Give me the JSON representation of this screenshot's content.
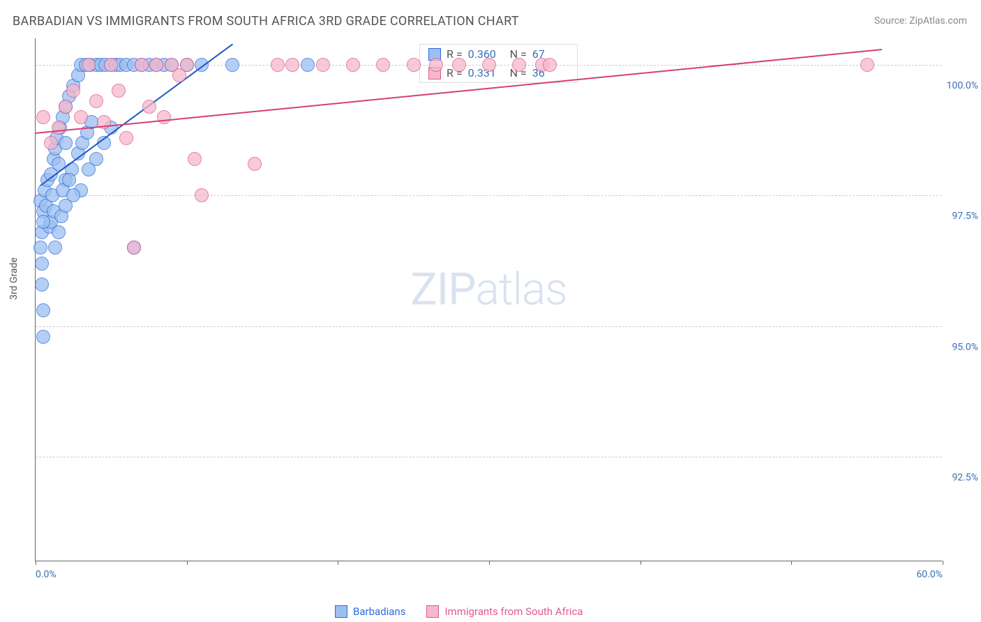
{
  "title": "BARBADIAN VS IMMIGRANTS FROM SOUTH AFRICA 3RD GRADE CORRELATION CHART",
  "source": "Source: ZipAtlas.com",
  "y_axis_title": "3rd Grade",
  "watermark_a": "ZIP",
  "watermark_b": "atlas",
  "chart": {
    "type": "scatter",
    "background_color": "#ffffff",
    "grid_color": "#cccccc",
    "axis_color": "#666666",
    "label_color": "#3b6fb6",
    "xlim": [
      0,
      60
    ],
    "ylim": [
      90.5,
      100.5
    ],
    "x_ticks": [
      0,
      10,
      20,
      30,
      40,
      50,
      60
    ],
    "x_tick_labels": {
      "0": "0.0%",
      "60": "60.0%"
    },
    "y_ticks": [
      92.5,
      95.0,
      97.5,
      100.0
    ],
    "y_tick_labels": [
      "92.5%",
      "95.0%",
      "97.5%",
      "100.0%"
    ],
    "marker_radius": 10,
    "marker_fill_opacity": 0.35,
    "marker_stroke_width": 1.5,
    "series": [
      {
        "name": "Barbadians",
        "color_stroke": "#2d6cdf",
        "color_fill": "#9bbff0",
        "R": "0.360",
        "N": "67",
        "trend": {
          "x1": 0.3,
          "y1": 97.7,
          "x2": 13.0,
          "y2": 100.4,
          "color": "#1e56c9",
          "width": 2
        },
        "points": [
          [
            0.3,
            97.4
          ],
          [
            0.5,
            97.2
          ],
          [
            0.4,
            96.8
          ],
          [
            0.3,
            96.5
          ],
          [
            0.6,
            97.6
          ],
          [
            0.8,
            97.8
          ],
          [
            1.0,
            97.9
          ],
          [
            1.2,
            98.2
          ],
          [
            1.3,
            98.4
          ],
          [
            1.5,
            98.1
          ],
          [
            1.4,
            98.6
          ],
          [
            1.6,
            98.8
          ],
          [
            1.8,
            99.0
          ],
          [
            0.9,
            96.9
          ],
          [
            0.7,
            97.3
          ],
          [
            1.1,
            97.5
          ],
          [
            2.0,
            99.2
          ],
          [
            2.2,
            99.4
          ],
          [
            2.5,
            99.6
          ],
          [
            2.8,
            99.8
          ],
          [
            3.0,
            100.0
          ],
          [
            3.3,
            100.0
          ],
          [
            3.6,
            100.0
          ],
          [
            4.0,
            100.0
          ],
          [
            4.3,
            100.0
          ],
          [
            4.6,
            100.0
          ],
          [
            5.0,
            100.0
          ],
          [
            5.3,
            100.0
          ],
          [
            5.6,
            100.0
          ],
          [
            6.0,
            100.0
          ],
          [
            6.5,
            100.0
          ],
          [
            7.0,
            100.0
          ],
          [
            7.5,
            100.0
          ],
          [
            8.0,
            100.0
          ],
          [
            8.5,
            100.0
          ],
          [
            9.0,
            100.0
          ],
          [
            10.0,
            100.0
          ],
          [
            11.0,
            100.0
          ],
          [
            13.0,
            100.0
          ],
          [
            18.0,
            100.0
          ],
          [
            1.0,
            97.0
          ],
          [
            1.2,
            97.2
          ],
          [
            0.5,
            97.0
          ],
          [
            2.0,
            97.8
          ],
          [
            2.4,
            98.0
          ],
          [
            2.8,
            98.3
          ],
          [
            3.1,
            98.5
          ],
          [
            3.4,
            98.7
          ],
          [
            3.7,
            98.9
          ],
          [
            1.8,
            97.6
          ],
          [
            0.4,
            96.2
          ],
          [
            0.4,
            95.8
          ],
          [
            0.5,
            95.3
          ],
          [
            0.5,
            94.8
          ],
          [
            1.3,
            96.5
          ],
          [
            1.5,
            96.8
          ],
          [
            1.7,
            97.1
          ],
          [
            2.0,
            97.3
          ],
          [
            6.5,
            96.5
          ],
          [
            3.0,
            97.6
          ],
          [
            3.5,
            98.0
          ],
          [
            4.0,
            98.2
          ],
          [
            4.5,
            98.5
          ],
          [
            5.0,
            98.8
          ],
          [
            2.5,
            97.5
          ],
          [
            2.2,
            97.8
          ],
          [
            2.0,
            98.5
          ]
        ]
      },
      {
        "name": "Immigrants from South Africa",
        "color_stroke": "#e05a8a",
        "color_fill": "#f5b8cd",
        "R": "0.331",
        "N": "36",
        "trend": {
          "x1": 0.0,
          "y1": 98.7,
          "x2": 56.0,
          "y2": 100.3,
          "color": "#d43f72",
          "width": 2
        },
        "points": [
          [
            0.5,
            99.0
          ],
          [
            1.0,
            98.5
          ],
          [
            1.5,
            98.8
          ],
          [
            2.0,
            99.2
          ],
          [
            2.5,
            99.5
          ],
          [
            3.0,
            99.0
          ],
          [
            3.5,
            100.0
          ],
          [
            4.0,
            99.3
          ],
          [
            4.5,
            98.9
          ],
          [
            5.0,
            100.0
          ],
          [
            5.5,
            99.5
          ],
          [
            6.0,
            98.6
          ],
          [
            6.5,
            96.5
          ],
          [
            7.0,
            100.0
          ],
          [
            7.5,
            99.2
          ],
          [
            8.0,
            100.0
          ],
          [
            8.5,
            99.0
          ],
          [
            9.0,
            100.0
          ],
          [
            9.5,
            99.8
          ],
          [
            10.0,
            100.0
          ],
          [
            10.5,
            98.2
          ],
          [
            11.0,
            97.5
          ],
          [
            14.5,
            98.1
          ],
          [
            16.0,
            100.0
          ],
          [
            17.0,
            100.0
          ],
          [
            19.0,
            100.0
          ],
          [
            21.0,
            100.0
          ],
          [
            23.0,
            100.0
          ],
          [
            25.0,
            100.0
          ],
          [
            26.5,
            100.0
          ],
          [
            28.0,
            100.0
          ],
          [
            30.0,
            100.0
          ],
          [
            32.0,
            100.0
          ],
          [
            33.5,
            100.0
          ],
          [
            34.0,
            100.0
          ],
          [
            55.0,
            100.0
          ]
        ]
      }
    ]
  },
  "stat_box": {
    "r_label": "R =",
    "n_label": "N ="
  }
}
